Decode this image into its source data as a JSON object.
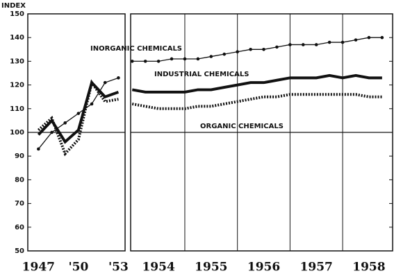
{
  "chart_data": {
    "type": "line",
    "y_label": "INDEX",
    "ylim": [
      50,
      150
    ],
    "yticks": [
      50,
      60,
      70,
      80,
      90,
      100,
      110,
      120,
      130,
      140,
      150
    ],
    "reference_line": 100,
    "panels": [
      {
        "xlim": [
          1946.2,
          1953.5
        ],
        "xticks": [
          {
            "value": 1947,
            "label": "1947"
          },
          {
            "value": 1950,
            "label": "'50"
          },
          {
            "value": 1953,
            "label": "'53"
          }
        ],
        "x": [
          1947,
          1948,
          1949,
          1950,
          1951,
          1952,
          1953
        ],
        "series": [
          {
            "style": "dots",
            "color": "#111",
            "values": [
              93,
              100,
              104,
              108,
              112,
              121,
              123
            ]
          },
          {
            "style": "thick",
            "color": "#111",
            "values": [
              99,
              105,
              96,
              101,
              121,
              115,
              117
            ]
          },
          {
            "style": "dashed",
            "color": "#111",
            "values": [
              101,
              106,
              91,
              97,
              121,
              113,
              114
            ]
          }
        ]
      },
      {
        "xlim": [
          1953.97,
          1958.95
        ],
        "xticks": [
          {
            "value": 1954.5,
            "label": "1954"
          },
          {
            "value": 1955.5,
            "label": "1955"
          },
          {
            "value": 1956.5,
            "label": "1956"
          },
          {
            "value": 1957.5,
            "label": "1957"
          },
          {
            "value": 1958.5,
            "label": "1958"
          }
        ],
        "gridlines_x": [
          1955,
          1956,
          1957,
          1958
        ],
        "x": [
          1954,
          1954.25,
          1954.5,
          1954.75,
          1955,
          1955.25,
          1955.5,
          1955.75,
          1956,
          1956.25,
          1956.5,
          1956.75,
          1957,
          1957.25,
          1957.5,
          1957.75,
          1958,
          1958.25,
          1958.5,
          1958.75
        ],
        "series": [
          {
            "name": "INORGANIC CHEMICALS",
            "style": "dots",
            "color": "#111",
            "values": [
              130,
              130,
              130,
              131,
              131,
              131,
              132,
              133,
              134,
              135,
              135,
              136,
              137,
              137,
              137,
              138,
              138,
              139,
              140,
              140
            ]
          },
          {
            "name": "INDUSTRIAL CHEMICALS",
            "style": "thick",
            "color": "#111",
            "values": [
              118,
              117,
              117,
              117,
              117,
              118,
              118,
              119,
              120,
              121,
              121,
              122,
              123,
              123,
              123,
              124,
              123,
              124,
              123,
              123
            ]
          },
          {
            "name": "ORGANIC CHEMICALS",
            "style": "dashed",
            "color": "#111",
            "values": [
              112,
              111,
              110,
              110,
              110,
              111,
              111,
              112,
              113,
              114,
              115,
              115,
              116,
              116,
              116,
              116,
              116,
              116,
              115,
              115
            ]
          }
        ]
      }
    ]
  }
}
